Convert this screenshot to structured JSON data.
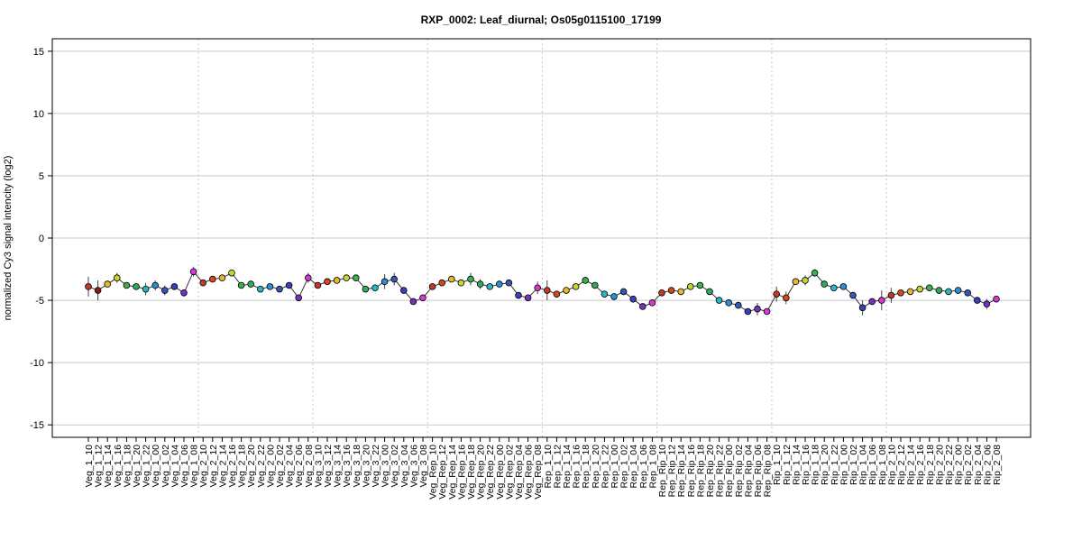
{
  "chart_data": {
    "type": "line",
    "title": "RXP_0002: Leaf_diurnal; Os05g0115100_17199",
    "xlabel": "",
    "ylabel": "normalized Cy3 signal intencity (log2)",
    "ylim": [
      -16,
      16
    ],
    "yticks": [
      -15,
      -10,
      -5,
      0,
      5,
      10,
      15
    ],
    "grid": true,
    "legend": "none",
    "group_separators_after": [
      "Veg_1_08",
      "Veg_2_08",
      "Veg_3_08",
      "Veg_Rep_08",
      "Rep_1_08",
      "Rep_Rip_08",
      "Rip_1_08"
    ],
    "categories": [
      "Veg_1_10",
      "Veg_1_12",
      "Veg_1_14",
      "Veg_1_16",
      "Veg_1_18",
      "Veg_1_20",
      "Veg_1_22",
      "Veg_1_00",
      "Veg_1_02",
      "Veg_1_04",
      "Veg_1_06",
      "Veg_1_08",
      "Veg_2_10",
      "Veg_2_12",
      "Veg_2_14",
      "Veg_2_16",
      "Veg_2_18",
      "Veg_2_20",
      "Veg_2_22",
      "Veg_2_00",
      "Veg_2_02",
      "Veg_2_04",
      "Veg_2_06",
      "Veg_2_08",
      "Veg_3_10",
      "Veg_3_12",
      "Veg_3_14",
      "Veg_3_16",
      "Veg_3_18",
      "Veg_3_20",
      "Veg_3_22",
      "Veg_3_00",
      "Veg_3_02",
      "Veg_3_04",
      "Veg_3_06",
      "Veg_3_08",
      "Veg_Rep_10",
      "Veg_Rep_12",
      "Veg_Rep_14",
      "Veg_Rep_16",
      "Veg_Rep_18",
      "Veg_Rep_20",
      "Veg_Rep_22",
      "Veg_Rep_00",
      "Veg_Rep_02",
      "Veg_Rep_04",
      "Veg_Rep_06",
      "Veg_Rep_08",
      "Rep_1_10",
      "Rep_1_12",
      "Rep_1_14",
      "Rep_1_16",
      "Rep_1_18",
      "Rep_1_20",
      "Rep_1_22",
      "Rep_1_00",
      "Rep_1_02",
      "Rep_1_04",
      "Rep_1_06",
      "Rep_1_08",
      "Rep_Rip_10",
      "Rep_Rip_12",
      "Rep_Rip_14",
      "Rep_Rip_16",
      "Rep_Rip_18",
      "Rep_Rip_20",
      "Rep_Rip_22",
      "Rep_Rip_00",
      "Rep_Rip_02",
      "Rep_Rip_04",
      "Rep_Rip_06",
      "Rep_Rip_08",
      "Rip_1_10",
      "Rip_1_12",
      "Rip_1_14",
      "Rip_1_16",
      "Rip_1_18",
      "Rip_1_20",
      "Rip_1_22",
      "Rip_1_00",
      "Rip_1_02",
      "Rip_1_04",
      "Rip_1_06",
      "Rip_1_08",
      "Rip_2_10",
      "Rip_2_12",
      "Rip_2_14",
      "Rip_2_16",
      "Rip_2_18",
      "Rip_2_20",
      "Rip_2_22",
      "Rip_2_00",
      "Rip_2_02",
      "Rip_2_04",
      "Rip_2_06",
      "Rip_2_08"
    ],
    "series": [
      {
        "values": [
          -3.9,
          -4.2,
          -3.7,
          -3.2,
          -3.8,
          -3.9,
          -4.1,
          -3.8,
          -4.2,
          -3.9,
          -4.4,
          -2.7,
          -3.6,
          -3.3,
          -3.2,
          -2.8,
          -3.8,
          -3.7,
          -4.1,
          -3.9,
          -4.1,
          -3.8,
          -4.8,
          -3.2,
          -3.8,
          -3.5,
          -3.4,
          -3.2,
          -3.2,
          -4.1,
          -4.0,
          -3.5,
          -3.3,
          -4.2,
          -5.1,
          -4.8,
          -3.9,
          -3.6,
          -3.3,
          -3.6,
          -3.3,
          -3.7,
          -3.9,
          -3.7,
          -3.6,
          -4.6,
          -4.8,
          -4.0,
          -4.2,
          -4.5,
          -4.2,
          -3.9,
          -3.4,
          -3.8,
          -4.5,
          -4.7,
          -4.3,
          -4.9,
          -5.5,
          -5.2,
          -4.4,
          -4.2,
          -4.3,
          -3.9,
          -3.8,
          -4.3,
          -5.0,
          -5.2,
          -5.4,
          -5.9,
          -5.7,
          -5.9,
          -4.5,
          -4.8,
          -3.5,
          -3.4,
          -2.8,
          -3.7,
          -4.0,
          -3.9,
          -4.6,
          -5.6,
          -5.1,
          -5.0,
          -4.6,
          -4.4,
          -4.3,
          -4.1,
          -4.0,
          -4.2,
          -4.3,
          -4.2,
          -4.4,
          -5.0,
          -5.3,
          -4.9
        ],
        "errors": [
          0.8,
          0.8,
          0.2,
          0.4,
          0.2,
          0.2,
          0.5,
          0.4,
          0.4,
          0.2,
          0.2,
          0.4,
          0.2,
          0.2,
          0.2,
          0.2,
          0.2,
          0.2,
          0.2,
          0.2,
          0.2,
          0.2,
          0.2,
          0.4,
          0.2,
          0.2,
          0.2,
          0.2,
          0.2,
          0.2,
          0.2,
          0.6,
          0.5,
          0.2,
          0.2,
          0.2,
          0.2,
          0.2,
          0.2,
          0.2,
          0.5,
          0.4,
          0.2,
          0.2,
          0.2,
          0.2,
          0.2,
          0.5,
          0.8,
          0.2,
          0.2,
          0.2,
          0.2,
          0.2,
          0.2,
          0.2,
          0.2,
          0.2,
          0.2,
          0.2,
          0.2,
          0.2,
          0.2,
          0.2,
          0.2,
          0.2,
          0.2,
          0.2,
          0.2,
          0.2,
          0.5,
          0.2,
          0.6,
          0.5,
          0.2,
          0.4,
          0.3,
          0.2,
          0.2,
          0.2,
          0.2,
          0.6,
          0.2,
          0.8,
          0.6,
          0.2,
          0.2,
          0.2,
          0.2,
          0.2,
          0.2,
          0.2,
          0.2,
          0.2,
          0.4,
          0.2
        ],
        "colors": [
          "#c0392b",
          "#8b1a1a",
          "#e8b830",
          "#c8d42a",
          "#3cb04a",
          "#2eaa62",
          "#2ab7c4",
          "#2a8fd6",
          "#3558b8",
          "#3a3fc0",
          "#7b2fc0",
          "#d33ad0",
          "#c0392b",
          "#d34a1a",
          "#e8b830",
          "#c8d42a",
          "#3cb04a",
          "#2eaa62",
          "#2ab7c4",
          "#2a8fd6",
          "#3558b8",
          "#3a3fc0",
          "#7b2fc0",
          "#d33ad0",
          "#c0392b",
          "#d34a1a",
          "#e8b830",
          "#c8d42a",
          "#3cb04a",
          "#2eaa62",
          "#2ab7c4",
          "#2a8fd6",
          "#3558b8",
          "#3a3fc0",
          "#7b2fc0",
          "#d33ad0",
          "#c0392b",
          "#d34a1a",
          "#e8b830",
          "#c8d42a",
          "#3cb04a",
          "#2eaa62",
          "#2ab7c4",
          "#2a8fd6",
          "#3558b8",
          "#3a3fc0",
          "#7b2fc0",
          "#d33ad0",
          "#c0392b",
          "#d34a1a",
          "#e8b830",
          "#c8d42a",
          "#3cb04a",
          "#2eaa62",
          "#2ab7c4",
          "#2a8fd6",
          "#3558b8",
          "#3a3fc0",
          "#7b2fc0",
          "#d33ad0",
          "#c0392b",
          "#d34a1a",
          "#e8b830",
          "#c8d42a",
          "#3cb04a",
          "#2eaa62",
          "#2ab7c4",
          "#2a8fd6",
          "#3558b8",
          "#3a3fc0",
          "#7b2fc0",
          "#d33ad0",
          "#c0392b",
          "#d34a1a",
          "#e8b830",
          "#c8d42a",
          "#3cb04a",
          "#2eaa62",
          "#2ab7c4",
          "#2a8fd6",
          "#3558b8",
          "#3a3fc0",
          "#7b2fc0",
          "#d33ad0",
          "#c0392b",
          "#d34a1a",
          "#e8b830",
          "#c8d42a",
          "#3cb04a",
          "#2eaa62",
          "#2ab7c4",
          "#2a8fd6",
          "#3558b8",
          "#3a3fc0",
          "#7b2fc0",
          "#d33ad0"
        ]
      }
    ]
  }
}
